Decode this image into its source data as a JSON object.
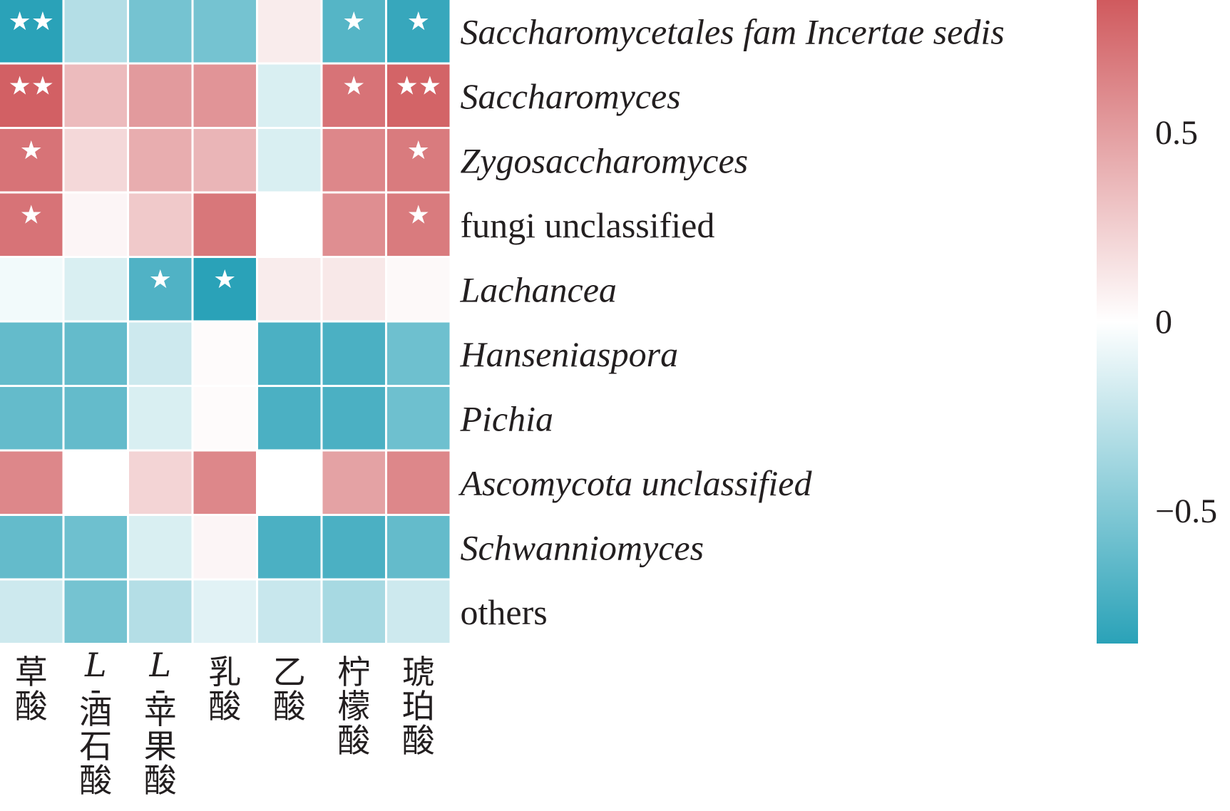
{
  "chart_data": {
    "type": "heatmap",
    "title": "",
    "rows": [
      "Saccharomycetales fam Incertae sedis",
      "Saccharomyces",
      "Zygosaccharomyces",
      "fungi unclassified",
      "Lachancea",
      "Hanseniaspora",
      "Pichia",
      "Ascomycota unclassified",
      "Schwanniomyces",
      "others"
    ],
    "italic_rows": [
      true,
      true,
      true,
      false,
      true,
      true,
      true,
      true,
      true,
      false
    ],
    "columns": [
      {
        "prefix": "",
        "text": "草酸"
      },
      {
        "prefix": "L",
        "text": "-酒石酸"
      },
      {
        "prefix": "L",
        "text": "-苹果酸"
      },
      {
        "prefix": "",
        "text": "乳酸"
      },
      {
        "prefix": "",
        "text": "乙酸"
      },
      {
        "prefix": "",
        "text": "柠檬酸"
      },
      {
        "prefix": "",
        "text": "琥珀酸"
      }
    ],
    "values": [
      [
        -0.88,
        -0.3,
        -0.55,
        -0.55,
        0.1,
        -0.68,
        -0.8
      ],
      [
        0.82,
        0.35,
        0.52,
        0.55,
        -0.15,
        0.72,
        0.8
      ],
      [
        0.72,
        0.2,
        0.42,
        0.38,
        -0.15,
        0.62,
        0.68
      ],
      [
        0.72,
        0.05,
        0.28,
        0.7,
        0.0,
        0.58,
        0.68
      ],
      [
        -0.05,
        -0.15,
        -0.7,
        -0.85,
        0.1,
        0.12,
        0.03
      ],
      [
        -0.62,
        -0.62,
        -0.2,
        0.02,
        -0.72,
        -0.72,
        -0.58
      ],
      [
        -0.62,
        -0.62,
        -0.15,
        0.02,
        -0.72,
        -0.72,
        -0.58
      ],
      [
        0.62,
        0.0,
        0.22,
        0.62,
        0.0,
        0.48,
        0.62
      ],
      [
        -0.62,
        -0.58,
        -0.15,
        0.05,
        -0.72,
        -0.72,
        -0.62
      ],
      [
        -0.2,
        -0.55,
        -0.3,
        -0.12,
        -0.22,
        -0.35,
        -0.2
      ]
    ],
    "significance": [
      [
        "**",
        "",
        "",
        "",
        "",
        "*",
        "*"
      ],
      [
        "**",
        "",
        "",
        "",
        "",
        "*",
        "**"
      ],
      [
        "*",
        "",
        "",
        "",
        "",
        "",
        "*"
      ],
      [
        "*",
        "",
        "",
        "",
        "",
        "",
        "*"
      ],
      [
        "",
        "",
        "*",
        "*",
        "",
        "",
        ""
      ],
      [
        "",
        "",
        "",
        "",
        "",
        "",
        ""
      ],
      [
        "",
        "",
        "",
        "",
        "",
        "",
        ""
      ],
      [
        "",
        "",
        "",
        "",
        "",
        "",
        ""
      ],
      [
        "",
        "",
        "",
        "",
        "",
        "",
        ""
      ],
      [
        "",
        "",
        "",
        "",
        "",
        "",
        ""
      ]
    ],
    "colorbar": {
      "range": [
        -0.85,
        0.85
      ],
      "ticks": [
        {
          "value": 0.5,
          "label": "0.5"
        },
        {
          "value": 0,
          "label": "0"
        },
        {
          "value": -0.5,
          "label": "−0.5"
        }
      ],
      "low_color": "#2aa2b8",
      "mid_color": "#ffffff",
      "high_color": "#d05a5e"
    }
  }
}
